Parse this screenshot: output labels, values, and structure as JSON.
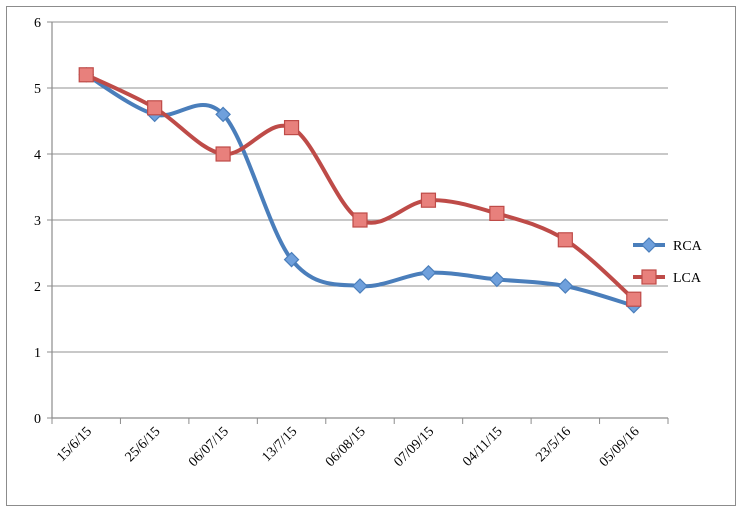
{
  "chart_data": {
    "type": "line",
    "categories": [
      "15/6/15",
      "25/6/15",
      "06/07/15",
      "13/7/15",
      "06/08/15",
      "07/09/15",
      "04/11/15",
      "23/5/16",
      "05/09/16"
    ],
    "series": [
      {
        "name": "RCA",
        "color": "#4a7ebb",
        "marker": "diamond",
        "marker_fill": "#6fa0dc",
        "values": [
          5.2,
          4.6,
          4.6,
          2.4,
          2.0,
          2.2,
          2.1,
          2.0,
          1.7
        ]
      },
      {
        "name": "LCA",
        "color": "#be4b48",
        "marker": "square",
        "marker_fill": "#e8807c",
        "values": [
          5.2,
          4.7,
          4.0,
          4.4,
          3.0,
          3.3,
          3.1,
          2.7,
          1.8
        ]
      }
    ],
    "ylim": [
      0,
      6
    ],
    "yticks": [
      "0",
      "1",
      "2",
      "3",
      "4",
      "5",
      "6"
    ],
    "grid": "horizontal",
    "smoothed": true,
    "legend_position": "right",
    "title": "",
    "xlabel": "",
    "ylabel": ""
  }
}
